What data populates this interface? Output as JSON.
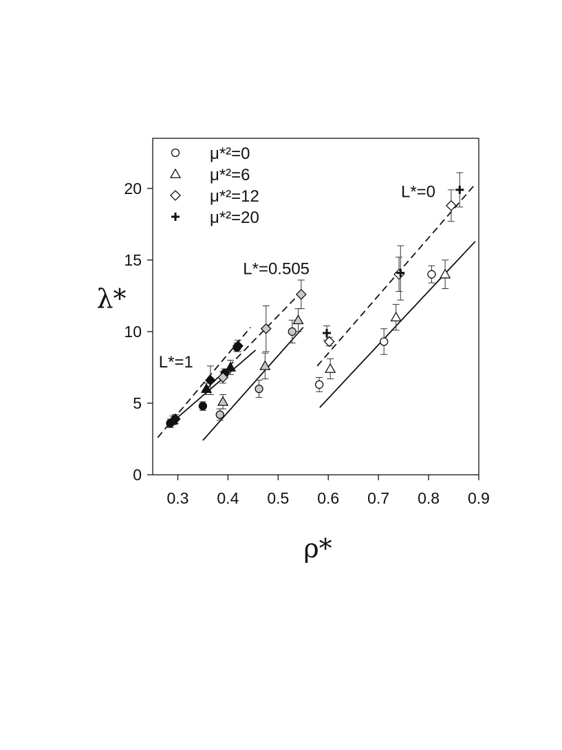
{
  "chart_data": {
    "type": "scatter",
    "title": "",
    "xlabel": "ρ*",
    "ylabel": "λ*",
    "xlim": [
      0.25,
      0.9
    ],
    "ylim": [
      0,
      23.5
    ],
    "xticks": [
      "0.3",
      "0.4",
      "0.5",
      "0.6",
      "0.7",
      "0.8",
      "0.9"
    ],
    "xtick_values": [
      0.3,
      0.4,
      0.5,
      0.6,
      0.7,
      0.8,
      0.9
    ],
    "yticks": [
      "0",
      "5",
      "10",
      "15",
      "20"
    ],
    "ytick_values": [
      0,
      5,
      10,
      15,
      20
    ],
    "grid": false,
    "legend_position": "top-left",
    "legend": [
      {
        "marker": "circle",
        "label": "μ*²=0"
      },
      {
        "marker": "triangle",
        "label": "μ*²=6"
      },
      {
        "marker": "diamond",
        "label": "μ*²=12"
      },
      {
        "marker": "plus",
        "label": "μ*²=20"
      }
    ],
    "annotations": [
      {
        "text": "L*=1",
        "x": 0.262,
        "y": 7.5
      },
      {
        "text": "L*=0.505",
        "x": 0.43,
        "y": 14
      },
      {
        "text": "L*=0",
        "x": 0.745,
        "y": 19.4
      }
    ],
    "colors": {
      "L1": "#111111",
      "L0505": "#c9c9c9",
      "L0": "#ffffff",
      "stroke": "#111111"
    },
    "lines": [
      {
        "group": "L*=1",
        "style": "solid",
        "x": [
          0.283,
          0.455
        ],
        "y": [
          3.5,
          8.7
        ]
      },
      {
        "group": "L*=1",
        "style": "dashed",
        "x": [
          0.26,
          0.445
        ],
        "y": [
          2.6,
          10.3
        ]
      },
      {
        "group": "L*=0.505",
        "style": "solid",
        "x": [
          0.35,
          0.55
        ],
        "y": [
          2.4,
          10.3
        ]
      },
      {
        "group": "L*=0.505",
        "style": "dashed",
        "x": [
          0.355,
          0.55
        ],
        "y": [
          5.9,
          12.9
        ]
      },
      {
        "group": "L*=0",
        "style": "solid",
        "x": [
          0.583,
          0.893
        ],
        "y": [
          4.7,
          16.3
        ]
      },
      {
        "group": "L*=0",
        "style": "dashed",
        "x": [
          0.578,
          0.893
        ],
        "y": [
          7.6,
          20.3
        ]
      }
    ],
    "points": [
      {
        "group": "L*=1",
        "marker": "circle",
        "x": 0.285,
        "y": 3.6,
        "err": 0.3
      },
      {
        "group": "L*=1",
        "marker": "circle",
        "x": 0.35,
        "y": 4.8,
        "err": 0.3
      },
      {
        "group": "L*=1",
        "marker": "circle",
        "x": 0.394,
        "y": 7.1,
        "err": 0.3
      },
      {
        "group": "L*=1",
        "marker": "circle",
        "x": 0.418,
        "y": 8.9,
        "err": 0.3
      },
      {
        "group": "L*=1",
        "marker": "triangle",
        "x": 0.29,
        "y": 3.8,
        "err": 0.3
      },
      {
        "group": "L*=1",
        "marker": "triangle",
        "x": 0.357,
        "y": 6.0,
        "err": 0.4
      },
      {
        "group": "L*=1",
        "marker": "triangle",
        "x": 0.405,
        "y": 7.5,
        "err": 0.5
      },
      {
        "group": "L*=1",
        "marker": "diamond",
        "x": 0.295,
        "y": 3.9,
        "err": 0.3
      },
      {
        "group": "L*=1",
        "marker": "diamond",
        "x": 0.365,
        "y": 6.6,
        "err": 1.0
      },
      {
        "group": "L*=1",
        "marker": "diamond",
        "x": 0.42,
        "y": 9.0,
        "err": 0.4
      },
      {
        "group": "L*=0.505",
        "marker": "circle",
        "x": 0.384,
        "y": 4.2,
        "err": 0.4
      },
      {
        "group": "L*=0.505",
        "marker": "circle",
        "x": 0.462,
        "y": 6.0,
        "err": 0.6
      },
      {
        "group": "L*=0.505",
        "marker": "circle",
        "x": 0.528,
        "y": 10.0,
        "err": 0.8
      },
      {
        "group": "L*=0.505",
        "marker": "triangle",
        "x": 0.39,
        "y": 5.1,
        "err": 0.5
      },
      {
        "group": "L*=0.505",
        "marker": "triangle",
        "x": 0.474,
        "y": 7.6,
        "err": 0.9
      },
      {
        "group": "L*=0.505",
        "marker": "triangle",
        "x": 0.54,
        "y": 10.8,
        "err": 0.8
      },
      {
        "group": "L*=0.505",
        "marker": "diamond",
        "x": 0.39,
        "y": 6.8,
        "err": 0.4
      },
      {
        "group": "L*=0.505",
        "marker": "diamond",
        "x": 0.476,
        "y": 10.2,
        "err": 1.6
      },
      {
        "group": "L*=0.505",
        "marker": "diamond",
        "x": 0.546,
        "y": 12.6,
        "err": 1.0
      },
      {
        "group": "L*=0",
        "marker": "circle",
        "x": 0.582,
        "y": 6.3,
        "err": 0.5
      },
      {
        "group": "L*=0",
        "marker": "circle",
        "x": 0.711,
        "y": 9.3,
        "err": 0.9
      },
      {
        "group": "L*=0",
        "marker": "circle",
        "x": 0.806,
        "y": 14.0,
        "err": 0.6
      },
      {
        "group": "L*=0",
        "marker": "triangle",
        "x": 0.604,
        "y": 7.4,
        "err": 0.7
      },
      {
        "group": "L*=0",
        "marker": "triangle",
        "x": 0.735,
        "y": 11.0,
        "err": 0.9
      },
      {
        "group": "L*=0",
        "marker": "triangle",
        "x": 0.833,
        "y": 14.0,
        "err": 1.0
      },
      {
        "group": "L*=0",
        "marker": "diamond",
        "x": 0.602,
        "y": 9.3,
        "err": 0.3
      },
      {
        "group": "L*=0",
        "marker": "diamond",
        "x": 0.741,
        "y": 14.0,
        "err": 1.2
      },
      {
        "group": "L*=0",
        "marker": "diamond",
        "x": 0.845,
        "y": 18.8,
        "err": 1.1
      },
      {
        "group": "L*=0",
        "marker": "plus",
        "x": 0.597,
        "y": 9.9,
        "err": 0.5
      },
      {
        "group": "L*=0",
        "marker": "plus",
        "x": 0.744,
        "y": 14.1,
        "err": 1.9
      },
      {
        "group": "L*=0",
        "marker": "plus",
        "x": 0.862,
        "y": 19.9,
        "err": 1.2
      }
    ]
  }
}
